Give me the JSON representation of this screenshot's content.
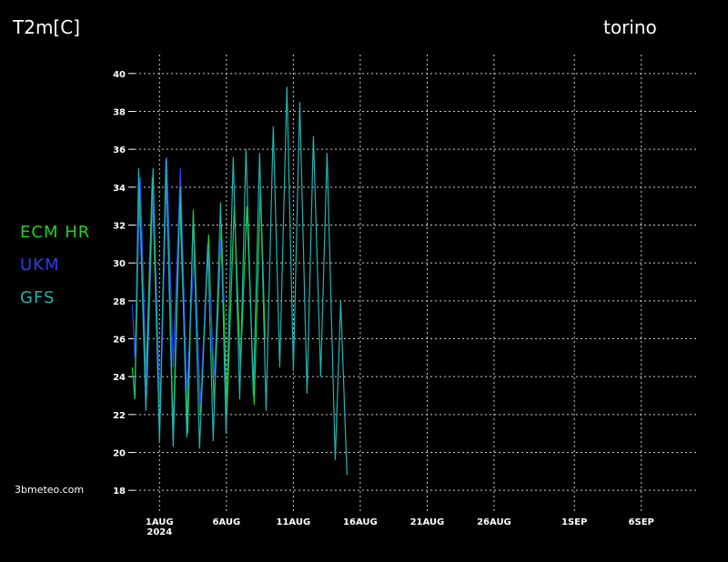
{
  "chart_data": {
    "type": "line",
    "title": "T2m[C]",
    "subtitle": "torino",
    "source": "3bmeteo.com",
    "x_sublabel": "2024",
    "xlim": [
      -2.4,
      40.1
    ],
    "ylim": [
      17,
      41
    ],
    "xticks": [
      {
        "value": 0,
        "label": "1AUG"
      },
      {
        "value": 5,
        "label": "6AUG"
      },
      {
        "value": 10,
        "label": "11AUG"
      },
      {
        "value": 15,
        "label": "16AUG"
      },
      {
        "value": 20,
        "label": "21AUG"
      },
      {
        "value": 25,
        "label": "26AUG"
      },
      {
        "value": 31,
        "label": "1SEP"
      },
      {
        "value": 36,
        "label": "6SEP"
      }
    ],
    "yticks": [
      18,
      20,
      22,
      24,
      26,
      28,
      30,
      32,
      34,
      36,
      38,
      40
    ],
    "grid": true,
    "series": [
      {
        "name": "ECM HR",
        "color": "#1ed41e",
        "x": [
          -2.04,
          -1.84,
          -1.5,
          -1.02,
          -0.54,
          0,
          0.54,
          1.02,
          1.5,
          2.11,
          2.52,
          3.06,
          3.67,
          4.08,
          4.63,
          5.03,
          5.58,
          6.05,
          6.53,
          7.07,
          7.55,
          7.89
        ],
        "values": [
          24.5,
          22.8,
          34,
          23.5,
          34.5,
          21,
          35,
          21,
          33.5,
          21,
          32.8,
          22,
          31.5,
          22.5,
          32,
          22,
          33,
          24.5,
          33,
          22.5,
          34,
          26
        ]
      },
      {
        "name": "UKM",
        "color": "#2a3ff0",
        "x": [
          -2.04,
          -1.84,
          -1.43,
          -0.95,
          -0.48,
          0.07,
          0.54,
          1.02,
          1.56,
          2.04,
          2.59,
          3.06,
          3.61,
          4.08,
          4.56,
          4.83
        ],
        "values": [
          27.8,
          25,
          34.5,
          23,
          33.8,
          22,
          35.6,
          24.5,
          35,
          23.2,
          30.5,
          22.5,
          31,
          24,
          31.2,
          28
        ]
      },
      {
        "name": "GFS",
        "color": "#1fb5b5",
        "x": [
          -1.84,
          -1.56,
          -1.02,
          -0.48,
          0,
          0.48,
          1.02,
          1.56,
          2.04,
          2.52,
          2.99,
          3.61,
          4.01,
          4.56,
          4.97,
          5.51,
          5.99,
          6.46,
          7.01,
          7.48,
          7.96,
          8.5,
          8.98,
          9.52,
          10.0,
          10.48,
          11.02,
          11.5,
          12.04,
          12.52,
          13.13,
          13.54,
          14.01
        ],
        "values": [
          22.9,
          35,
          22.2,
          35,
          20.5,
          35.5,
          20.3,
          34,
          20.8,
          32.5,
          20.2,
          31,
          20.6,
          33.2,
          21,
          35.6,
          22.8,
          36,
          23,
          35.8,
          22.2,
          37.2,
          24.5,
          39.3,
          24.3,
          38.5,
          23.1,
          36.7,
          24,
          35.8,
          19.6,
          28,
          18.8
        ]
      }
    ]
  }
}
